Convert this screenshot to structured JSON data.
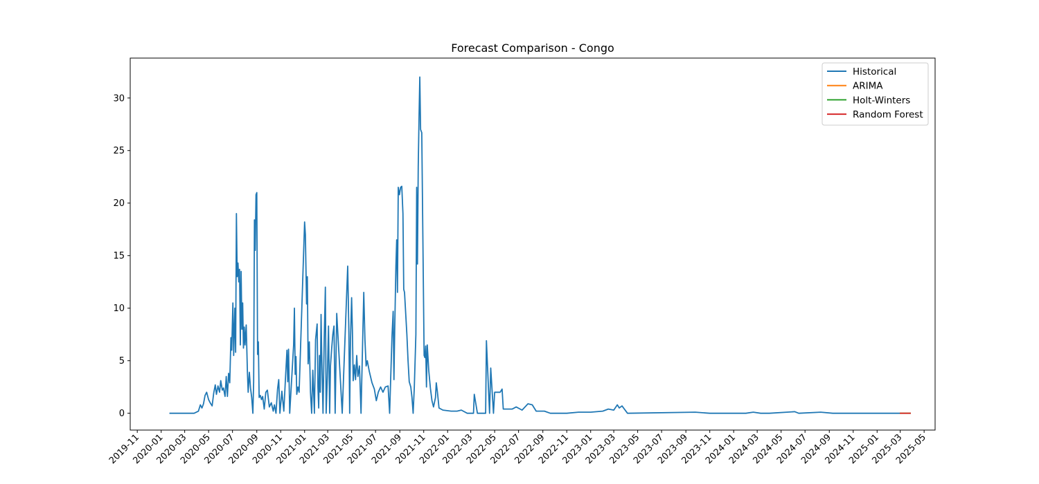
{
  "chart_data": {
    "type": "line",
    "title": "Forecast Comparison - Congo",
    "xlabel": "",
    "ylabel": "",
    "x_axis": "date",
    "xlim": [
      "2019-10-14",
      "2025-05-29"
    ],
    "ylim": [
      -1.6,
      33.8
    ],
    "y_ticks": [
      0,
      5,
      10,
      15,
      20,
      25,
      30
    ],
    "x_ticks": [
      "2019-11",
      "2020-01",
      "2020-03",
      "2020-05",
      "2020-07",
      "2020-09",
      "2020-11",
      "2021-01",
      "2021-03",
      "2021-05",
      "2021-07",
      "2021-09",
      "2021-11",
      "2022-01",
      "2022-03",
      "2022-05",
      "2022-07",
      "2022-09",
      "2022-11",
      "2023-01",
      "2023-03",
      "2023-05",
      "2023-07",
      "2023-09",
      "2023-11",
      "2024-01",
      "2024-03",
      "2024-05",
      "2024-07",
      "2024-09",
      "2024-11",
      "2025-01",
      "2025-03",
      "2025-05"
    ],
    "grid": false,
    "legend_position": "top-right",
    "series": [
      {
        "name": "Historical",
        "color": "#1f77b4",
        "points": [
          [
            "2020-01-22",
            0
          ],
          [
            "2020-03-25",
            0
          ],
          [
            "2020-04-05",
            0.2
          ],
          [
            "2020-04-10",
            0.8
          ],
          [
            "2020-04-14",
            0.5
          ],
          [
            "2020-04-18",
            0.9
          ],
          [
            "2020-04-22",
            1.7
          ],
          [
            "2020-04-26",
            2.0
          ],
          [
            "2020-05-01",
            1.3
          ],
          [
            "2020-05-05",
            1.0
          ],
          [
            "2020-05-10",
            0.7
          ],
          [
            "2020-05-14",
            1.9
          ],
          [
            "2020-05-18",
            2.7
          ],
          [
            "2020-05-21",
            1.8
          ],
          [
            "2020-05-25",
            2.6
          ],
          [
            "2020-05-29",
            2.0
          ],
          [
            "2020-06-01",
            3.1
          ],
          [
            "2020-06-05",
            2.2
          ],
          [
            "2020-06-08",
            2.4
          ],
          [
            "2020-06-12",
            1.6
          ],
          [
            "2020-06-15",
            3.5
          ],
          [
            "2020-06-18",
            1.6
          ],
          [
            "2020-06-21",
            3.8
          ],
          [
            "2020-06-24",
            2.9
          ],
          [
            "2020-06-27",
            7.2
          ],
          [
            "2020-06-29",
            6.0
          ],
          [
            "2020-07-02",
            10.5
          ],
          [
            "2020-07-04",
            5.5
          ],
          [
            "2020-07-07",
            10.0
          ],
          [
            "2020-07-09",
            5.8
          ],
          [
            "2020-07-11",
            19.0
          ],
          [
            "2020-07-13",
            13.0
          ],
          [
            "2020-07-15",
            14.3
          ],
          [
            "2020-07-17",
            12.5
          ],
          [
            "2020-07-19",
            13.7
          ],
          [
            "2020-07-21",
            6.5
          ],
          [
            "2020-07-23",
            13.5
          ],
          [
            "2020-07-25",
            8.0
          ],
          [
            "2020-07-27",
            10.5
          ],
          [
            "2020-07-29",
            6.2
          ],
          [
            "2020-07-31",
            8.2
          ],
          [
            "2020-08-02",
            6.5
          ],
          [
            "2020-08-05",
            8.4
          ],
          [
            "2020-08-08",
            4.0
          ],
          [
            "2020-08-10",
            2.0
          ],
          [
            "2020-08-13",
            3.9
          ],
          [
            "2020-08-16",
            2.4
          ],
          [
            "2020-08-19",
            1.5
          ],
          [
            "2020-08-22",
            0.0
          ],
          [
            "2020-08-24",
            3.0
          ],
          [
            "2020-08-26",
            18.4
          ],
          [
            "2020-08-28",
            15.5
          ],
          [
            "2020-08-30",
            20.8
          ],
          [
            "2020-09-01",
            21.0
          ],
          [
            "2020-09-03",
            5.6
          ],
          [
            "2020-09-05",
            6.8
          ],
          [
            "2020-09-07",
            1.5
          ],
          [
            "2020-09-10",
            1.7
          ],
          [
            "2020-09-13",
            1.3
          ],
          [
            "2020-09-16",
            1.6
          ],
          [
            "2020-09-20",
            0.4
          ],
          [
            "2020-09-24",
            2.0
          ],
          [
            "2020-09-28",
            2.2
          ],
          [
            "2020-10-03",
            0.6
          ],
          [
            "2020-10-08",
            1.0
          ],
          [
            "2020-10-13",
            0.2
          ],
          [
            "2020-10-16",
            0.8
          ],
          [
            "2020-10-20",
            0.0
          ],
          [
            "2020-10-24",
            2.3
          ],
          [
            "2020-10-27",
            3.2
          ],
          [
            "2020-10-30",
            0.0
          ],
          [
            "2020-11-04",
            2.1
          ],
          [
            "2020-11-09",
            0.2
          ],
          [
            "2020-11-13",
            3.2
          ],
          [
            "2020-11-17",
            6.0
          ],
          [
            "2020-11-19",
            3.0
          ],
          [
            "2020-11-21",
            6.1
          ],
          [
            "2020-11-24",
            0.0
          ],
          [
            "2020-12-04",
            6.5
          ],
          [
            "2020-12-06",
            10.0
          ],
          [
            "2020-12-08",
            3.7
          ],
          [
            "2020-12-10",
            5.4
          ],
          [
            "2020-12-12",
            1.8
          ],
          [
            "2020-12-15",
            2.5
          ],
          [
            "2020-12-18",
            2.0
          ],
          [
            "2021-01-01",
            18.2
          ],
          [
            "2021-01-03",
            17.0
          ],
          [
            "2021-01-06",
            10.4
          ],
          [
            "2021-01-08",
            13.0
          ],
          [
            "2021-01-10",
            4.7
          ],
          [
            "2021-01-13",
            6.8
          ],
          [
            "2021-01-16",
            2.0
          ],
          [
            "2021-01-19",
            0.0
          ],
          [
            "2021-01-22",
            4.1
          ],
          [
            "2021-01-26",
            0.0
          ],
          [
            "2021-01-29",
            7.0
          ],
          [
            "2021-02-02",
            8.5
          ],
          [
            "2021-02-04",
            2.5
          ],
          [
            "2021-02-06",
            0.5
          ],
          [
            "2021-02-08",
            5.5
          ],
          [
            "2021-02-10",
            2.0
          ],
          [
            "2021-02-12",
            9.4
          ],
          [
            "2021-02-14",
            5.0
          ],
          [
            "2021-02-17",
            0.0
          ],
          [
            "2021-02-20",
            7.0
          ],
          [
            "2021-02-23",
            12.0
          ],
          [
            "2021-02-25",
            0.0
          ],
          [
            "2021-02-28",
            3.4
          ],
          [
            "2021-03-03",
            8.3
          ],
          [
            "2021-03-06",
            0.0
          ],
          [
            "2021-03-08",
            4.5
          ],
          [
            "2021-03-11",
            6.1
          ],
          [
            "2021-03-14",
            7.5
          ],
          [
            "2021-03-17",
            8.3
          ],
          [
            "2021-03-20",
            0.0
          ],
          [
            "2021-03-24",
            9.5
          ],
          [
            "2021-04-07",
            0.0
          ],
          [
            "2021-04-21",
            14.0
          ],
          [
            "2021-04-24",
            7.7
          ],
          [
            "2021-04-26",
            0.0
          ],
          [
            "2021-04-28",
            6.8
          ],
          [
            "2021-05-01",
            11.0
          ],
          [
            "2021-05-03",
            7.9
          ],
          [
            "2021-05-05",
            3.1
          ],
          [
            "2021-05-08",
            4.6
          ],
          [
            "2021-05-11",
            3.2
          ],
          [
            "2021-05-14",
            5.5
          ],
          [
            "2021-05-17",
            3.5
          ],
          [
            "2021-05-21",
            4.5
          ],
          [
            "2021-05-25",
            0.0
          ],
          [
            "2021-06-01",
            11.5
          ],
          [
            "2021-06-04",
            7.0
          ],
          [
            "2021-06-07",
            4.5
          ],
          [
            "2021-06-10",
            5.0
          ],
          [
            "2021-06-15",
            4.0
          ],
          [
            "2021-06-22",
            2.9
          ],
          [
            "2021-06-28",
            2.3
          ],
          [
            "2021-07-03",
            1.2
          ],
          [
            "2021-07-08",
            2.0
          ],
          [
            "2021-07-14",
            2.5
          ],
          [
            "2021-07-20",
            2.0
          ],
          [
            "2021-07-26",
            2.5
          ],
          [
            "2021-08-02",
            2.6
          ],
          [
            "2021-08-06",
            0.0
          ],
          [
            "2021-08-12",
            7.3
          ],
          [
            "2021-08-15",
            9.7
          ],
          [
            "2021-08-17",
            3.2
          ],
          [
            "2021-08-19",
            8.0
          ],
          [
            "2021-08-22",
            14.0
          ],
          [
            "2021-08-24",
            16.5
          ],
          [
            "2021-08-26",
            11.5
          ],
          [
            "2021-08-28",
            21.5
          ],
          [
            "2021-08-31",
            20.8
          ],
          [
            "2021-09-03",
            21.5
          ],
          [
            "2021-09-06",
            21.6
          ],
          [
            "2021-09-09",
            19.0
          ],
          [
            "2021-09-11",
            11.8
          ],
          [
            "2021-09-13",
            11.5
          ],
          [
            "2021-09-16",
            9.5
          ],
          [
            "2021-09-19",
            7.5
          ],
          [
            "2021-09-22",
            5.0
          ],
          [
            "2021-09-25",
            3.0
          ],
          [
            "2021-09-29",
            2.5
          ],
          [
            "2021-10-02",
            1.5
          ],
          [
            "2021-10-05",
            0.0
          ],
          [
            "2021-10-08",
            2.5
          ],
          [
            "2021-10-12",
            7.5
          ],
          [
            "2021-10-14",
            21.5
          ],
          [
            "2021-10-16",
            14.2
          ],
          [
            "2021-10-18",
            23.5
          ],
          [
            "2021-10-20",
            28.1
          ],
          [
            "2021-10-22",
            32.0
          ],
          [
            "2021-10-24",
            27.0
          ],
          [
            "2021-10-27",
            26.7
          ],
          [
            "2021-10-29",
            19.6
          ],
          [
            "2021-11-02",
            5.5
          ],
          [
            "2021-11-04",
            5.3
          ],
          [
            "2021-11-06",
            6.4
          ],
          [
            "2021-11-08",
            2.5
          ],
          [
            "2021-11-10",
            6.5
          ],
          [
            "2021-11-14",
            4.0
          ],
          [
            "2021-11-18",
            2.4
          ],
          [
            "2021-11-22",
            1.2
          ],
          [
            "2021-11-26",
            0.6
          ],
          [
            "2021-12-01",
            1.5
          ],
          [
            "2021-12-03",
            2.9
          ],
          [
            "2021-12-06",
            2.0
          ],
          [
            "2021-12-10",
            0.5
          ],
          [
            "2021-12-20",
            0.3
          ],
          [
            "2022-01-10",
            0.2
          ],
          [
            "2022-01-25",
            0.2
          ],
          [
            "2022-02-05",
            0.3
          ],
          [
            "2022-02-20",
            0.0
          ],
          [
            "2022-03-08",
            0.0
          ],
          [
            "2022-03-10",
            1.8
          ],
          [
            "2022-03-18",
            0.0
          ],
          [
            "2022-04-08",
            0.0
          ],
          [
            "2022-04-10",
            6.9
          ],
          [
            "2022-04-18",
            0.0
          ],
          [
            "2022-04-21",
            4.3
          ],
          [
            "2022-04-28",
            0.0
          ],
          [
            "2022-05-01",
            2.0
          ],
          [
            "2022-05-15",
            2.0
          ],
          [
            "2022-05-20",
            2.3
          ],
          [
            "2022-05-23",
            0.4
          ],
          [
            "2022-06-15",
            0.4
          ],
          [
            "2022-06-25",
            0.6
          ],
          [
            "2022-07-10",
            0.3
          ],
          [
            "2022-07-25",
            0.9
          ],
          [
            "2022-08-05",
            0.8
          ],
          [
            "2022-08-15",
            0.2
          ],
          [
            "2022-09-05",
            0.2
          ],
          [
            "2022-09-20",
            0.0
          ],
          [
            "2022-11-01",
            0.0
          ],
          [
            "2022-12-01",
            0.1
          ],
          [
            "2023-01-01",
            0.1
          ],
          [
            "2023-02-01",
            0.2
          ],
          [
            "2023-02-15",
            0.4
          ],
          [
            "2023-03-01",
            0.3
          ],
          [
            "2023-03-10",
            0.8
          ],
          [
            "2023-03-15",
            0.5
          ],
          [
            "2023-03-22",
            0.7
          ],
          [
            "2023-04-05",
            0.0
          ],
          [
            "2023-09-25",
            0.1
          ],
          [
            "2023-11-01",
            0.0
          ],
          [
            "2024-02-01",
            0.0
          ],
          [
            "2024-02-20",
            0.1
          ],
          [
            "2024-03-10",
            0.0
          ],
          [
            "2024-04-01",
            0.0
          ],
          [
            "2024-06-05",
            0.15
          ],
          [
            "2024-06-15",
            0.0
          ],
          [
            "2024-08-10",
            0.1
          ],
          [
            "2024-09-10",
            0.0
          ],
          [
            "2025-02-28",
            0.0
          ]
        ]
      },
      {
        "name": "ARIMA",
        "color": "#ff7f0e",
        "points": [
          [
            "2025-02-28",
            0.0
          ],
          [
            "2025-03-28",
            0.0
          ]
        ]
      },
      {
        "name": "Holt-Winters",
        "color": "#2ca02c",
        "points": [
          [
            "2025-02-28",
            0.0
          ],
          [
            "2025-03-28",
            0.0
          ]
        ]
      },
      {
        "name": "Random Forest",
        "color": "#d62728",
        "points": [
          [
            "2025-02-28",
            0.0
          ],
          [
            "2025-03-28",
            0.0
          ]
        ]
      }
    ]
  }
}
